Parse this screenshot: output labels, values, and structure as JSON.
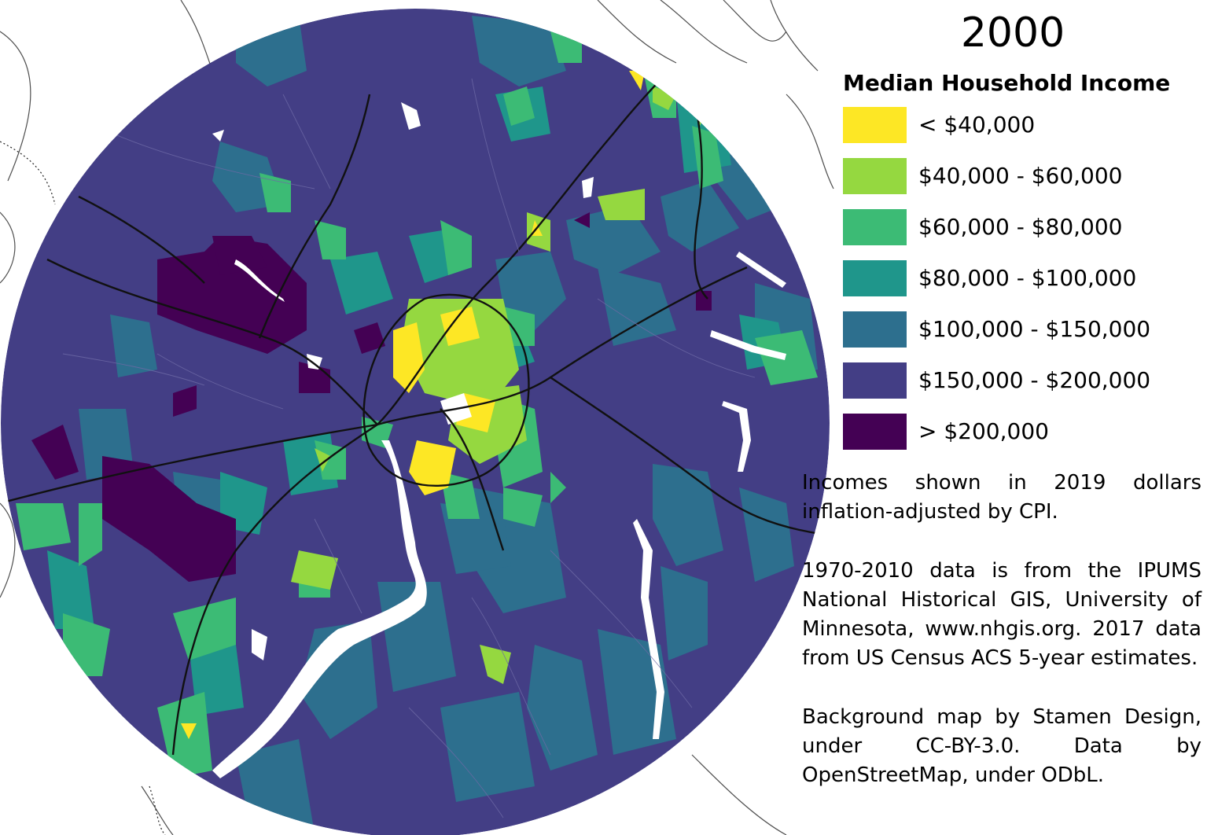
{
  "map": {
    "year": "2000",
    "legend": {
      "title": "Median Household Income",
      "items": [
        {
          "label": "< $40,000",
          "color": "#fde725"
        },
        {
          "label": "$40,000 - $60,000",
          "color": "#95d840"
        },
        {
          "label": "$60,000 - $80,000",
          "color": "#3cbb75"
        },
        {
          "label": "$80,000 - $100,000",
          "color": "#1f968b"
        },
        {
          "label": "$100,000 - $150,000",
          "color": "#2d6f8e"
        },
        {
          "label": "$150,000 - $200,000",
          "color": "#433e85"
        },
        {
          "label": "> $200,000",
          "color": "#440154"
        }
      ]
    },
    "notes": [
      "Incomes shown in 2019 dollars inflation-adjusted by CPI.",
      "1970-2010 data is from the IPUMS National Historical GIS, University of Minnesota, www.nhgis.org. 2017 data from US Census ACS 5-year estimates.",
      "Background map by Stamen Design, under CC-BY-3.0. Data by OpenStreetMap, under ODbL."
    ]
  }
}
